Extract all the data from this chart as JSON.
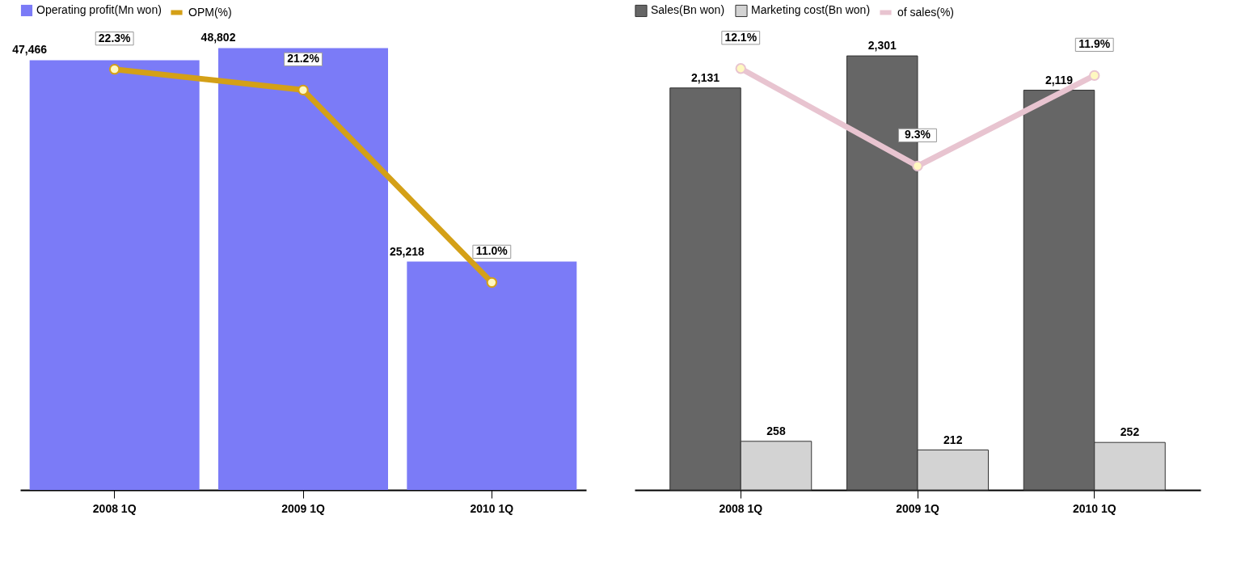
{
  "chart_data": [
    {
      "type": "bar",
      "categories": [
        "2008 1Q",
        "2009 1Q",
        "2010 1Q"
      ],
      "tick_labels": "x",
      "data_labels": true,
      "legend": "top left",
      "grid": false,
      "marker": "circle",
      "series": [
        {
          "name": "Operating profit(Mn won)",
          "color": "#7b7bf7",
          "values": [
            47466,
            48802,
            25218
          ],
          "value_labels": [
            "47,466",
            "48,802",
            "25,218"
          ]
        },
        {
          "name": "OPM(%)",
          "type": "line",
          "axis": "y2",
          "color": "#d4a017",
          "values": [
            22.3,
            21.2,
            11.0
          ],
          "value_labels": [
            "22.3%",
            "21.2%",
            "11.0%"
          ]
        }
      ]
    },
    {
      "type": "bar",
      "categories": [
        "2008 1Q",
        "2009 1Q",
        "2010 1Q"
      ],
      "tick_labels": "x",
      "data_labels": true,
      "legend": "top left",
      "grid": false,
      "marker": "circle",
      "series": [
        {
          "name": "Sales(Bn won)",
          "color": "#666666",
          "values": [
            2131,
            2301,
            2119
          ],
          "value_labels": [
            "2,131",
            "2,301",
            "2,119"
          ]
        },
        {
          "name": "Marketing cost(Bn won)",
          "color": "#d3d3d3",
          "values": [
            258,
            212,
            252
          ],
          "value_labels": [
            "258",
            "212",
            "252"
          ]
        },
        {
          "name": "of sales(%)",
          "type": "line",
          "axis": "y2",
          "color": "#e8c4d0",
          "values": [
            12.1,
            9.3,
            11.9
          ],
          "value_labels": [
            "12.1%",
            "9.3%",
            "11.9%"
          ]
        }
      ]
    }
  ]
}
